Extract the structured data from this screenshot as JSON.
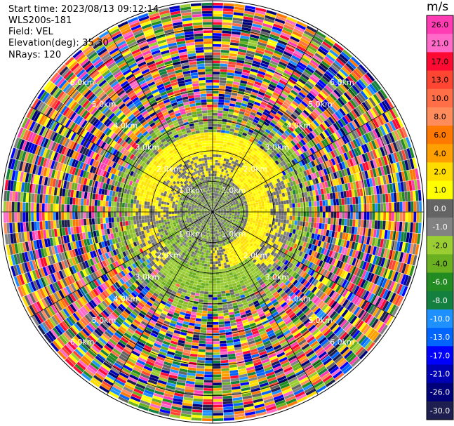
{
  "header": {
    "start_time": "Start time: 2023/08/13 09:12:14",
    "instrument": "WLS200s-181",
    "field": "Field: VEL",
    "elevation": "Elevation(deg): 35.30",
    "nrays": "NRays: 120"
  },
  "colorbar": {
    "title": "m/s",
    "ticks": [
      "26.0",
      "21.0",
      "17.0",
      "13.0",
      "10.0",
      "8.0",
      "6.0",
      "4.0",
      "2.0",
      "1.0",
      "0.0",
      "-1.0",
      "-2.0",
      "-4.0",
      "-6.0",
      "-8.0",
      "-10.0",
      "-13.0",
      "-17.0",
      "-21.0",
      "-26.0",
      "-30.0"
    ],
    "colors": [
      "#ff3cb4",
      "#ff69c8",
      "#ff0a32",
      "#ff4632",
      "#ff6e46",
      "#ff8c5a",
      "#ff7800",
      "#ffa000",
      "#ffdc00",
      "#ffff00",
      "#646464",
      "#828282",
      "#9acd32",
      "#6ab020",
      "#228b22",
      "#138040",
      "#1e90ff",
      "#0064ff",
      "#0000ff",
      "#0000b4",
      "#000078",
      "#1e1e50"
    ]
  },
  "chart_data": {
    "type": "ppi",
    "title": "",
    "field": "VEL",
    "units": "m/s",
    "nrays": 120,
    "range_ring_labels": [
      "1.0km",
      "2.0km",
      "3.0km",
      "4.0km",
      "5.0km",
      "6.0km"
    ],
    "range_rings_km": [
      1,
      2,
      3,
      4,
      5,
      6
    ],
    "max_range_km": 6.9,
    "velocity_bins": [
      26.0,
      21.0,
      17.0,
      13.0,
      10.0,
      8.0,
      6.0,
      4.0,
      2.0,
      1.0,
      0.0,
      -1.0,
      -2.0,
      -4.0,
      -6.0,
      -8.0,
      -10.0,
      -13.0,
      -17.0,
      -21.0,
      -26.0,
      -30.0
    ]
  }
}
